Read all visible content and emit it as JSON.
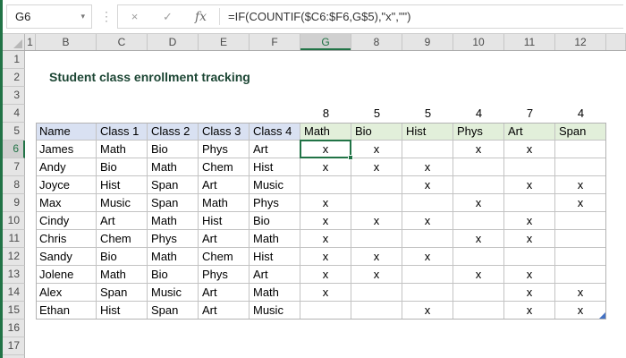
{
  "app": {
    "name_box": "G6",
    "name_box_arrow": "▾",
    "splitter_dots": "⋮",
    "cancel_icon": "×",
    "enter_icon": "✓",
    "fx_icon": "fx",
    "formula": "=IF(COUNTIF($C6:$F6,G$5),\"x\",\"\")"
  },
  "grid": {
    "column_headers": [
      "1",
      "B",
      "C",
      "D",
      "E",
      "F",
      "G",
      "8",
      "9",
      "10",
      "11",
      "12"
    ],
    "row_headers": [
      "1",
      "2",
      "3",
      "4",
      "5",
      "6",
      "7",
      "8",
      "9",
      "10",
      "11",
      "12",
      "13",
      "14",
      "15",
      "16",
      "17"
    ],
    "selected": {
      "cell": "G6",
      "column_header": "G",
      "row_header": "6"
    },
    "title": "Student class enrollment tracking",
    "counts": [
      "8",
      "5",
      "5",
      "4",
      "7",
      "4"
    ],
    "table": {
      "left_headers": [
        "Name",
        "Class 1",
        "Class 2",
        "Class 3",
        "Class 4"
      ],
      "subject_headers": [
        "Math",
        "Bio",
        "Hist",
        "Phys",
        "Art",
        "Span"
      ],
      "rows": [
        {
          "name": "James",
          "classes": [
            "Math",
            "Bio",
            "Phys",
            "Art"
          ],
          "marks": [
            "x",
            "x",
            "",
            "x",
            "x",
            ""
          ]
        },
        {
          "name": "Andy",
          "classes": [
            "Bio",
            "Math",
            "Chem",
            "Hist"
          ],
          "marks": [
            "x",
            "x",
            "x",
            "",
            "",
            ""
          ]
        },
        {
          "name": "Joyce",
          "classes": [
            "Hist",
            "Span",
            "Art",
            "Music"
          ],
          "marks": [
            "",
            "",
            "x",
            "",
            "x",
            "x"
          ]
        },
        {
          "name": "Max",
          "classes": [
            "Music",
            "Span",
            "Math",
            "Phys"
          ],
          "marks": [
            "x",
            "",
            "",
            "x",
            "",
            "x"
          ]
        },
        {
          "name": "Cindy",
          "classes": [
            "Art",
            "Math",
            "Hist",
            "Bio"
          ],
          "marks": [
            "x",
            "x",
            "x",
            "",
            "x",
            ""
          ]
        },
        {
          "name": "Chris",
          "classes": [
            "Chem",
            "Phys",
            "Art",
            "Math"
          ],
          "marks": [
            "x",
            "",
            "",
            "x",
            "x",
            ""
          ]
        },
        {
          "name": "Sandy",
          "classes": [
            "Bio",
            "Math",
            "Chem",
            "Hist"
          ],
          "marks": [
            "x",
            "x",
            "x",
            "",
            "",
            ""
          ]
        },
        {
          "name": "Jolene",
          "classes": [
            "Math",
            "Bio",
            "Phys",
            "Art"
          ],
          "marks": [
            "x",
            "x",
            "",
            "x",
            "x",
            ""
          ]
        },
        {
          "name": "Alex",
          "classes": [
            "Span",
            "Music",
            "Art",
            "Math"
          ],
          "marks": [
            "x",
            "",
            "",
            "",
            "x",
            "x"
          ]
        },
        {
          "name": "Ethan",
          "classes": [
            "Hist",
            "Span",
            "Art",
            "Music"
          ],
          "marks": [
            "",
            "",
            "x",
            "",
            "x",
            "x"
          ]
        }
      ]
    }
  },
  "colors": {
    "accent_green": "#217346",
    "header_blue": "#d9e1f2",
    "header_green": "#e2efda",
    "table_handle_blue": "#4472c4",
    "title_color": "#1c4634"
  }
}
